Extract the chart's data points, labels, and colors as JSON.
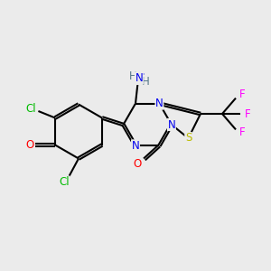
{
  "bg_color": "#ebebeb",
  "bond_color": "#000000",
  "bond_width": 1.5,
  "atom_colors": {
    "Cl": "#00bb00",
    "O": "#ff0000",
    "N": "#0000ee",
    "S": "#bbbb00",
    "F": "#ff00ff",
    "H": "#557788",
    "C": "#000000"
  },
  "font_size": 8.5,
  "fig_width": 3.0,
  "fig_height": 3.0,
  "xlim": [
    0,
    10
  ],
  "ylim": [
    0,
    10
  ]
}
